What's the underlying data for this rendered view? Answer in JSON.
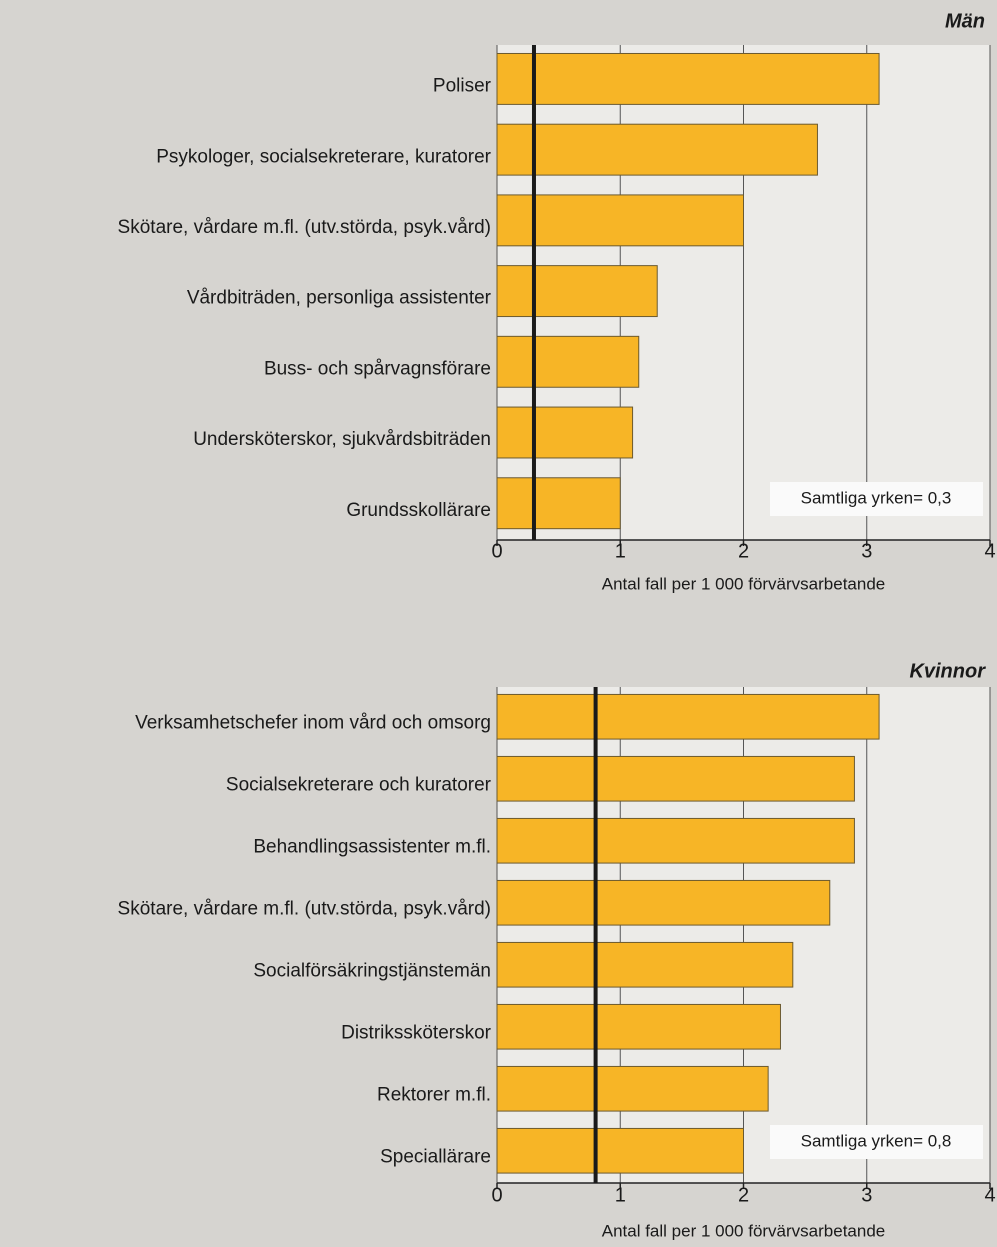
{
  "chart_data": [
    {
      "type": "hbar",
      "title": "Män",
      "categories": [
        "Poliser",
        "Psykologer, socialsekreterare, kuratorer",
        "Skötare, vårdare m.fl. (utv.störda, psyk.vård)",
        "Vårdbiträden, personliga assistenter",
        "Buss- och spårvagnsförare",
        "Undersköterskor, sjukvårdsbiträden",
        "Grundsskollärare"
      ],
      "values": [
        3.1,
        2.6,
        2.0,
        1.3,
        1.15,
        1.1,
        1.0
      ],
      "color": "#f7b526",
      "xlim": [
        0,
        4
      ],
      "xticks": [
        0,
        1,
        2,
        3,
        4
      ],
      "grid": true,
      "xlabel": "Antal fall per 1 000 förvärvsarbetande",
      "reference_value": 0.3,
      "reference_label": "Samtliga yrken= 0,3"
    },
    {
      "type": "hbar",
      "title": "Kvinnor",
      "categories": [
        "Verksamhetschefer inom vård och omsorg",
        "Socialsekreterare och kuratorer",
        "Behandlingsassistenter m.fl.",
        "Skötare, vårdare m.fl. (utv.störda, psyk.vård)",
        "Socialförsäkringstjänstemän",
        "Distrikssköterskor",
        "Rektorer m.fl.",
        "Speciallärare"
      ],
      "values": [
        3.1,
        2.9,
        2.9,
        2.7,
        2.4,
        2.3,
        2.2,
        2.0
      ],
      "color": "#f7b526",
      "xlim": [
        0,
        4
      ],
      "xticks": [
        0,
        1,
        2,
        3,
        4
      ],
      "grid": true,
      "xlabel": "Antal fall per 1 000 förvärvsarbetande",
      "reference_value": 0.8,
      "reference_label": "Samtliga yrken= 0,8"
    }
  ]
}
